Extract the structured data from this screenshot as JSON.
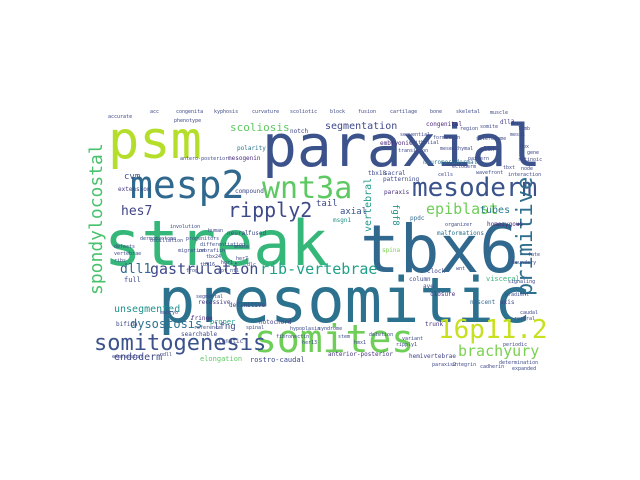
{
  "words": [
    {
      "text": "tbx6",
      "color": "#31688e"
    },
    {
      "text": "streak",
      "color": "#35b779"
    },
    {
      "text": "presomitic",
      "color": "#2c718e"
    },
    {
      "text": "paraxial",
      "color": "#3b528b"
    },
    {
      "text": "psm",
      "color": "#b5de2b"
    },
    {
      "text": "somites",
      "color": "#6ece58"
    },
    {
      "text": "mesp2",
      "color": "#31688e"
    },
    {
      "text": "wnt3a",
      "color": "#5ec962"
    },
    {
      "text": "mesoderm",
      "color": "#3b528b"
    },
    {
      "text": "16p11.2",
      "color": "#c8e020"
    },
    {
      "text": "primitive",
      "color": "#2e6e8e"
    },
    {
      "text": "somitogenesis",
      "color": "#3b528b"
    },
    {
      "text": "ripply2",
      "color": "#3e4a89"
    },
    {
      "text": "spondylocostal",
      "color": "#4ac16d"
    },
    {
      "text": "gastrulation",
      "color": "#3e4989"
    },
    {
      "text": "rib-vertebrae",
      "color": "#1fa088"
    },
    {
      "text": "epiblast",
      "color": "#6ece58"
    },
    {
      "text": "brachyury",
      "color": "#7ad151"
    },
    {
      "text": "hes7",
      "color": "#414487"
    },
    {
      "text": "dll1",
      "color": "#31688e"
    },
    {
      "text": "dysostosis",
      "color": "#2c728e"
    },
    {
      "text": "unsegmented",
      "color": "#21918c"
    },
    {
      "text": "endoderm",
      "color": "#3e4a89"
    },
    {
      "text": "scoliosis",
      "color": "#5ec962"
    },
    {
      "text": "segmentation",
      "color": "#3e4989"
    },
    {
      "text": "tubes",
      "color": "#2a788e"
    },
    {
      "text": "vertebral",
      "color": "#1e9b8a"
    },
    {
      "text": "axial",
      "color": "#3b528b"
    },
    {
      "text": "tail",
      "color": "#3e4989"
    },
    {
      "text": "fgf8",
      "color": "#21918c"
    },
    {
      "text": "cvm",
      "color": "#3b528b"
    },
    {
      "text": "lfng",
      "color": "#3e4989"
    },
    {
      "text": "elongation",
      "color": "#5ec962"
    },
    {
      "text": "rostro-caudal",
      "color": "#3e4989"
    },
    {
      "text": "polarity",
      "color": "#2c718e"
    },
    {
      "text": "notch",
      "color": "#414487"
    },
    {
      "text": "extension",
      "color": "#443983"
    },
    {
      "text": "compound",
      "color": "#3e4a89"
    },
    {
      "text": "recessive",
      "color": "#443983"
    },
    {
      "text": "definitive",
      "color": "#3e4989"
    },
    {
      "text": "fringe",
      "color": "#472d7b"
    },
    {
      "text": "notochord",
      "color": "#424086"
    },
    {
      "text": "clock",
      "color": "#3e4989"
    },
    {
      "text": "column",
      "color": "#3e4a89"
    },
    {
      "text": "visceral",
      "color": "#35b779"
    },
    {
      "text": "axis",
      "color": "#3e4989"
    },
    {
      "text": "nascent",
      "color": "#31688e"
    },
    {
      "text": "closure",
      "color": "#46327e"
    },
    {
      "text": "bifida",
      "color": "#3e4989"
    },
    {
      "text": "congenital",
      "color": "#482878"
    },
    {
      "text": "plan",
      "color": "#3e4989"
    },
    {
      "text": "dll3",
      "color": "#443983"
    },
    {
      "text": "malformations",
      "color": "#2c718e"
    },
    {
      "text": "hemivertebrae",
      "color": "#414487"
    },
    {
      "text": "anterior-posterior",
      "color": "#46327e"
    },
    {
      "text": "sacral",
      "color": "#3e4989"
    },
    {
      "text": "spina",
      "color": "#7ad151"
    },
    {
      "text": "patterning",
      "color": "#3e4989"
    },
    {
      "text": "embryonic",
      "color": "#482878"
    },
    {
      "text": "lunatic",
      "color": "#3e4989"
    },
    {
      "text": "proper",
      "color": "#1fa088"
    },
    {
      "text": "mesogenin",
      "color": "#472d7b"
    },
    {
      "text": "trunk",
      "color": "#46327e"
    },
    {
      "text": "full",
      "color": "#3e4989"
    },
    {
      "text": "msgn1",
      "color": "#21918c"
    },
    {
      "text": "ave",
      "color": "#3e4989"
    },
    {
      "text": "neural",
      "color": "#414487"
    },
    {
      "text": "tbx18",
      "color": "#3e4989"
    },
    {
      "text": "ppdc",
      "color": "#31688e"
    },
    {
      "text": "paraxis",
      "color": "#472d7b"
    },
    {
      "text": "fused",
      "color": "#3e4989"
    },
    {
      "text": "searchable",
      "color": "#3e4989"
    },
    {
      "text": "neuromesodermal",
      "color": "#2c718e"
    },
    {
      "text": "ndll",
      "color": "#3e4989"
    },
    {
      "text": "sequential",
      "color": "#3e4989"
    },
    {
      "text": "homozygous",
      "color": "#482878"
    },
    {
      "text": "involution",
      "color": "#3e4989"
    },
    {
      "text": "dermomyotome",
      "color": "#3e4989"
    },
    {
      "text": "mesp1",
      "color": "#3e4989"
    },
    {
      "text": "wnt",
      "color": "#3e4989"
    },
    {
      "text": "organizer",
      "color": "#3e4989"
    },
    {
      "text": "somite",
      "color": "#3e4989"
    },
    {
      "text": "sclerotome",
      "color": "#3e4989"
    },
    {
      "text": "hox",
      "color": "#3e4989"
    },
    {
      "text": "ectoderm",
      "color": "#3e4989"
    },
    {
      "text": "tbxt",
      "color": "#3e4989"
    },
    {
      "text": "node",
      "color": "#3e4989"
    },
    {
      "text": "periodic",
      "color": "#3e4989"
    },
    {
      "text": "determination",
      "color": "#3e4989"
    },
    {
      "text": "oscillation",
      "color": "#3e4989"
    },
    {
      "text": "boundary",
      "color": "#3e4989"
    },
    {
      "text": "fate",
      "color": "#3e4989"
    },
    {
      "text": "segmental",
      "color": "#3e4989"
    },
    {
      "text": "spinal",
      "color": "#3e4989"
    },
    {
      "text": "syndrome",
      "color": "#3e4989"
    },
    {
      "text": "deletion",
      "color": "#3e4989"
    },
    {
      "text": "variant",
      "color": "#3e4989"
    },
    {
      "text": "gene",
      "color": "#3e4989"
    },
    {
      "text": "retinoic",
      "color": "#3e4989"
    },
    {
      "text": "signaling",
      "color": "#3e4989"
    },
    {
      "text": "gradient",
      "color": "#3e4989"
    },
    {
      "text": "caudal",
      "color": "#3e4989"
    },
    {
      "text": "rostral",
      "color": "#3e4989"
    },
    {
      "text": "interaction",
      "color": "#3e4989"
    },
    {
      "text": "wavefront",
      "color": "#3e4989"
    },
    {
      "text": "cells",
      "color": "#3e4989"
    },
    {
      "text": "migration",
      "color": "#3e4989"
    },
    {
      "text": "progenitors",
      "color": "#3e4989"
    },
    {
      "text": "differentiation",
      "color": "#3e4989"
    },
    {
      "text": "expression",
      "color": "#3e4989"
    },
    {
      "text": "defects",
      "color": "#3e4989"
    },
    {
      "text": "vertebrae",
      "color": "#3e4989"
    },
    {
      "text": "ribs",
      "color": "#3e4989"
    },
    {
      "text": "mouse",
      "color": "#3e4989"
    },
    {
      "text": "human",
      "color": "#3e4989"
    },
    {
      "text": "zebrafish",
      "color": "#3e4989"
    },
    {
      "text": "embryo",
      "color": "#3e4989"
    },
    {
      "text": "reference",
      "color": "#3e4989"
    },
    {
      "text": "frog",
      "color": "#3e4989"
    },
    {
      "text": "tbx24",
      "color": "#3e4989"
    },
    {
      "text": "her1",
      "color": "#3e4989"
    },
    {
      "text": "her7",
      "color": "#3e4989"
    },
    {
      "text": "dlc",
      "color": "#3e4989"
    },
    {
      "text": "tbx16",
      "color": "#3e4989"
    },
    {
      "text": "spt",
      "color": "#3e4989"
    },
    {
      "text": "ntl",
      "color": "#3e4989"
    },
    {
      "text": "transition",
      "color": "#3e4989"
    },
    {
      "text": "epithelial",
      "color": "#3e4989"
    },
    {
      "text": "mesenchymal",
      "color": "#3e4989"
    },
    {
      "text": "formation",
      "color": "#3e4989"
    },
    {
      "text": "region",
      "color": "#3e4989"
    },
    {
      "text": "pattern",
      "color": "#3e4989"
    },
    {
      "text": "limb",
      "color": "#3e4989"
    },
    {
      "text": "muscle",
      "color": "#3e4989"
    },
    {
      "text": "skeletal",
      "color": "#3e4989"
    },
    {
      "text": "bone",
      "color": "#3e4989"
    },
    {
      "text": "cartilage",
      "color": "#3e4989"
    },
    {
      "text": "fusion",
      "color": "#3e4989"
    },
    {
      "text": "block",
      "color": "#3e4989"
    },
    {
      "text": "scoliotic",
      "color": "#3e4989"
    },
    {
      "text": "curvature",
      "color": "#3e4989"
    },
    {
      "text": "kyphosis",
      "color": "#3e4989"
    },
    {
      "text": "congenita",
      "color": "#3e4989"
    },
    {
      "text": "acc",
      "color": "#3e4989"
    },
    {
      "text": "accurate",
      "color": "#3e4989"
    },
    {
      "text": "antero-posterior",
      "color": "#3e4989"
    },
    {
      "text": "phenotype",
      "color": "#3e4989"
    },
    {
      "text": "hypoplasia",
      "color": "#3e4989"
    },
    {
      "text": "stem",
      "color": "#3e4989"
    },
    {
      "text": "hmx1",
      "color": "#3e4989"
    },
    {
      "text": "her13",
      "color": "#3e4989"
    },
    {
      "text": "fibronectin",
      "color": "#3e4989"
    },
    {
      "text": "ripply1",
      "color": "#3e4989"
    },
    {
      "text": "integrin",
      "color": "#3e4989"
    },
    {
      "text": "cadherin",
      "color": "#3e4989"
    },
    {
      "text": "paraxis2",
      "color": "#3e4989"
    },
    {
      "text": "expanded",
      "color": "#3e4989"
    }
  ]
}
